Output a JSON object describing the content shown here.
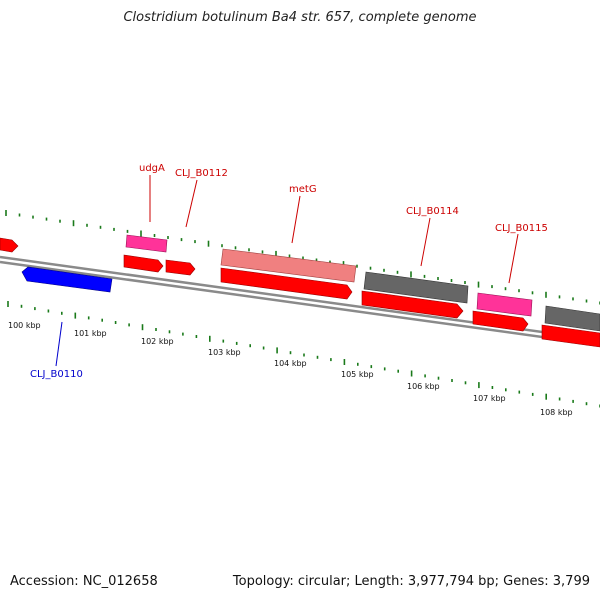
{
  "title": "Clostridium botulinum Ba4 str. 657, complete genome",
  "footer": {
    "accession": "Accession: NC_012658",
    "summary": "Topology: circular; Length: 3,977,794 bp; Genes: 3,799"
  },
  "colors": {
    "backbone": "#8a8a8a",
    "tick": "#1a7a1a",
    "forward_cds": "#ff0000",
    "reverse_cds": "#0000ff",
    "trna": "#ff3399",
    "gene_grey": "#666666",
    "gene_pink": "#f08080",
    "label_red": "#cc0000",
    "label_blue": "#0000cc"
  },
  "kbp_labels": [
    "100 kbp",
    "101 kbp",
    "102 kbp",
    "103 kbp",
    "104 kbp",
    "105 kbp",
    "106 kbp",
    "107 kbp",
    "108 kbp"
  ],
  "gene_labels": [
    {
      "text": "udgA",
      "color": "label_red"
    },
    {
      "text": "CLJ_B0112",
      "color": "label_red"
    },
    {
      "text": "metG",
      "color": "label_red"
    },
    {
      "text": "CLJ_B0114",
      "color": "label_red"
    },
    {
      "text": "CLJ_B0115",
      "color": "label_red"
    },
    {
      "text": "CLJ_B0110",
      "color": "label_blue"
    }
  ]
}
